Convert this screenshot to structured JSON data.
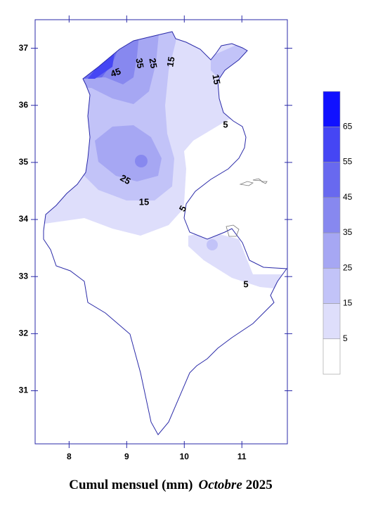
{
  "map": {
    "xlim": [
      7.41,
      11.79
    ],
    "ylim": [
      30.07,
      37.5
    ],
    "xticks": [
      8,
      9,
      10,
      11
    ],
    "yticks": [
      31,
      32,
      33,
      34,
      35,
      36,
      37
    ],
    "contour_labels": [
      45,
      35,
      25,
      15,
      15,
      5,
      25,
      15,
      5,
      5
    ],
    "legend": {
      "levels": [
        5,
        15,
        25,
        35,
        45,
        55,
        65
      ],
      "colors": [
        "#ffffff",
        "#dedefb",
        "#c2c3f8",
        "#a6a7f3",
        "#8788ef",
        "#6869ef",
        "#4546f4",
        "#1011ff"
      ]
    },
    "title": {
      "text": "Cumul mensuel (mm)",
      "month": "Octobre",
      "year": "2025"
    }
  }
}
